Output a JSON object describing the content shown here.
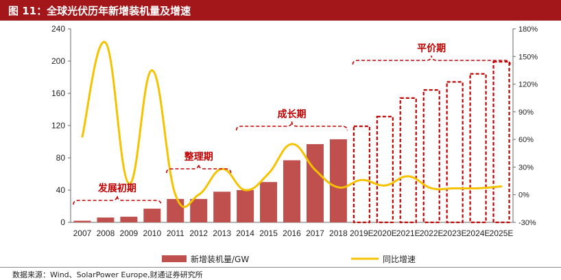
{
  "header": {
    "title": "图 11：全球光伏历年新增装机量及增速"
  },
  "source": "数据来源：Wind、SolarPower Europe,财通证券研究所",
  "colors": {
    "header_bg": "#a3171b",
    "bar_fill": "#c0504d",
    "bar_outline": "#c00000",
    "line": "#f5c200",
    "annotation": "#c00000"
  },
  "chart_data": {
    "type": "bar",
    "categories": [
      "2007",
      "2008",
      "2009",
      "2010",
      "2011",
      "2012",
      "2013",
      "2014",
      "2015",
      "2016",
      "2017",
      "2018",
      "2019E",
      "2020E",
      "2021E",
      "2022E",
      "2023E",
      "2024E",
      "2025E"
    ],
    "series": [
      {
        "name": "新增装机量/GW",
        "type": "bar",
        "axis": "left",
        "values": [
          2,
          6,
          7,
          17,
          29,
          29,
          38,
          40,
          50,
          77,
          97,
          103,
          120,
          132,
          155,
          165,
          175,
          185,
          200
        ],
        "forecast_from_index": 12
      },
      {
        "name": "同比增速",
        "type": "line",
        "axis": "right",
        "values": [
          63,
          165,
          12,
          135,
          0,
          0,
          28,
          5,
          23,
          55,
          27,
          8,
          16,
          10,
          20,
          7,
          7,
          7,
          9
        ]
      }
    ],
    "left_axis": {
      "min": 0,
      "max": 240,
      "ticks": [
        "0",
        "40",
        "80",
        "120",
        "160",
        "200",
        "240"
      ]
    },
    "right_axis": {
      "min": -30,
      "max": 180,
      "ticks": [
        "-30%",
        "0%",
        "30%",
        "60%",
        "90%",
        "120%",
        "150%",
        "180%"
      ]
    },
    "annotations": [
      {
        "label": "发展初期",
        "from": "2007",
        "to": "2010"
      },
      {
        "label": "整理期",
        "from": "2011",
        "to": "2013"
      },
      {
        "label": "成长期",
        "from": "2014",
        "to": "2018"
      },
      {
        "label": "平价期",
        "from": "2019E",
        "to": "2025E"
      }
    ],
    "legend": {
      "placement": "bottom",
      "items": [
        "新增装机量/GW",
        "同比增速"
      ]
    },
    "grid": false
  }
}
